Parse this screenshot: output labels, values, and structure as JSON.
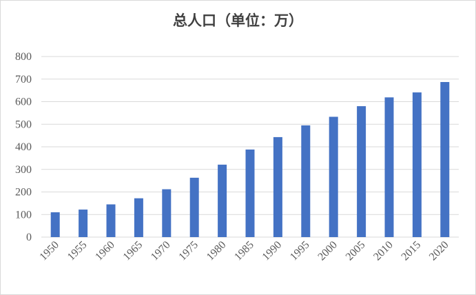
{
  "chart_data": {
    "type": "bar",
    "title": "总人口（单位：万）",
    "xlabel": "",
    "ylabel": "",
    "categories": [
      "1950",
      "1955",
      "1960",
      "1965",
      "1970",
      "1975",
      "1980",
      "1985",
      "1990",
      "1995",
      "2000",
      "2005",
      "2010",
      "2015",
      "2020"
    ],
    "values": [
      110,
      122,
      145,
      172,
      212,
      263,
      321,
      388,
      443,
      495,
      533,
      580,
      619,
      641,
      687
    ],
    "ylim": [
      0,
      800
    ],
    "yticks": [
      0,
      100,
      200,
      300,
      400,
      500,
      600,
      700,
      800
    ],
    "grid": true,
    "legend": "none",
    "bar_color": "#4472C4",
    "grid_color": "#d9d9d9"
  }
}
